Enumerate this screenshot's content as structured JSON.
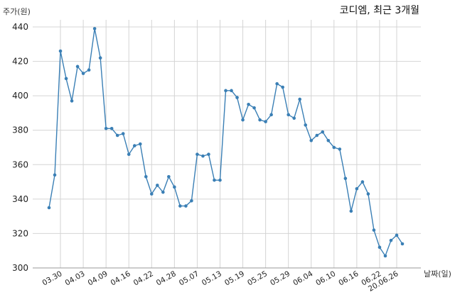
{
  "chart_data": {
    "type": "line",
    "title": "코디엠, 최근 3개월",
    "ylabel": "주가(원)",
    "xlabel": "날짜(일)",
    "ylim": [
      300,
      440
    ],
    "yticks": [
      300,
      320,
      340,
      360,
      380,
      400,
      420,
      440
    ],
    "grid": true,
    "color": "#3a7fb5",
    "x_tick_labels": [
      "03.30",
      "04.03",
      "04.09",
      "04.16",
      "04.22",
      "04.28",
      "05.07",
      "05.13",
      "05.19",
      "05.25",
      "05.29",
      "06.04",
      "06.10",
      "06.16",
      "06.22",
      "20.06.26"
    ],
    "x_tick_indices": [
      2,
      6,
      10,
      14,
      18,
      22,
      26,
      30,
      34,
      38,
      42,
      46,
      50,
      54,
      58,
      61
    ],
    "series": [
      {
        "values": [
          335,
          354,
          426,
          410,
          397,
          417,
          413,
          415,
          439,
          422,
          381,
          381,
          377,
          378,
          366,
          371,
          372,
          353,
          343,
          348,
          344,
          353,
          347,
          336,
          336,
          339,
          366,
          365,
          366,
          351,
          351,
          403,
          403,
          399,
          386,
          395,
          393,
          386,
          385,
          389,
          407,
          405,
          389,
          387,
          398,
          383,
          374,
          377,
          379,
          374,
          370,
          369,
          352,
          333,
          346,
          350,
          343,
          322,
          312,
          307,
          316,
          319,
          314
        ]
      }
    ]
  }
}
